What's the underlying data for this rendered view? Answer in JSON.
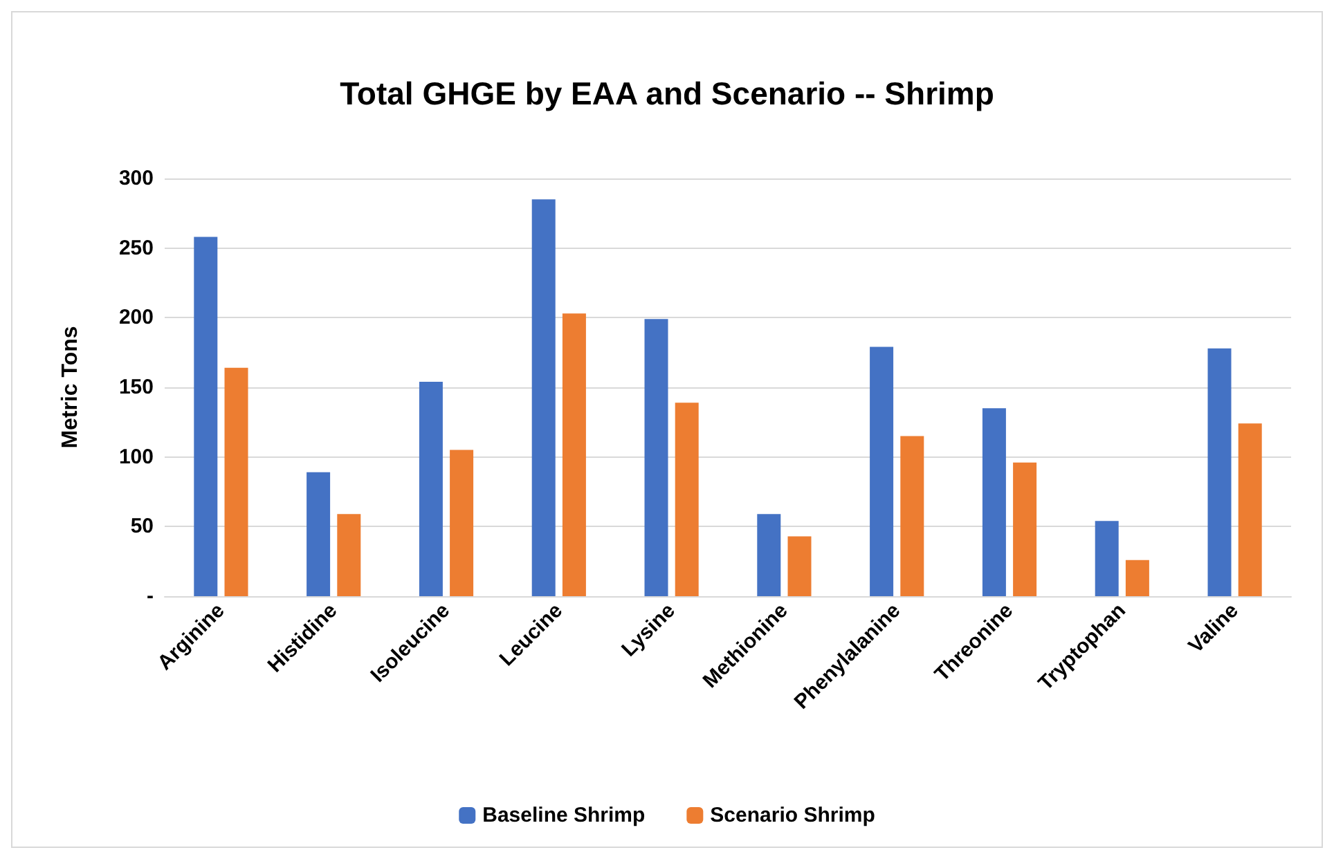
{
  "chart_data": {
    "type": "bar",
    "title": "Total GHGE by EAA and Scenario -- Shrimp",
    "ylabel": "Metric Tons",
    "categories": [
      "Arginine",
      "Histidine",
      "Isoleucine",
      "Leucine",
      "Lysine",
      "Methionine",
      "Phenylalanine",
      "Threonine",
      "Tryptophan",
      "Valine"
    ],
    "series": [
      {
        "name": "Baseline Shrimp",
        "color": "#4472c4",
        "values": [
          258,
          89,
          154,
          285,
          199,
          59,
          179,
          135,
          54,
          178
        ]
      },
      {
        "name": "Scenario Shrimp",
        "color": "#ed7d31",
        "values": [
          164,
          59,
          105,
          203,
          139,
          43,
          115,
          96,
          26,
          124
        ]
      }
    ],
    "ylim": [
      0,
      300
    ],
    "yticks": [
      {
        "value": 0,
        "label": "-"
      },
      50,
      100,
      150,
      200,
      250,
      300
    ],
    "grid": "y",
    "legend": "bottom"
  }
}
